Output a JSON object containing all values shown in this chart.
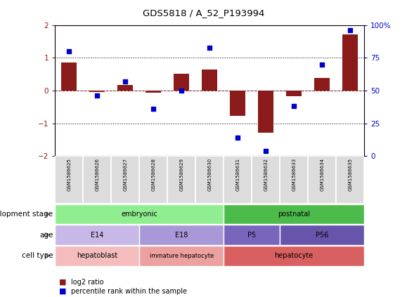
{
  "title": "GDS5818 / A_52_P193994",
  "samples": [
    "GSM1586625",
    "GSM1586626",
    "GSM1586627",
    "GSM1586628",
    "GSM1586629",
    "GSM1586630",
    "GSM1586631",
    "GSM1586632",
    "GSM1586633",
    "GSM1586634",
    "GSM1586635"
  ],
  "log2_ratio": [
    0.85,
    -0.05,
    0.18,
    -0.06,
    0.52,
    0.65,
    -0.78,
    -1.28,
    -0.18,
    0.38,
    1.72
  ],
  "percentile": [
    80,
    46,
    57,
    36,
    50,
    83,
    14,
    4,
    38,
    70,
    96
  ],
  "ylim": [
    -2,
    2
  ],
  "right_ylim": [
    0,
    100
  ],
  "bar_color": "#8B1A1A",
  "dot_color": "#0000CC",
  "development_stage_rows": [
    {
      "start": 0,
      "end": 6,
      "color": "#90EE90",
      "label": "embryonic"
    },
    {
      "start": 6,
      "end": 11,
      "color": "#4CBB4C",
      "label": "postnatal"
    }
  ],
  "age_rows": [
    {
      "start": 0,
      "end": 3,
      "color": "#C8B8E8",
      "label": "E14"
    },
    {
      "start": 3,
      "end": 6,
      "color": "#A898D8",
      "label": "E18"
    },
    {
      "start": 6,
      "end": 8,
      "color": "#7766BB",
      "label": "P5"
    },
    {
      "start": 8,
      "end": 11,
      "color": "#6655AA",
      "label": "P56"
    }
  ],
  "cell_type_rows": [
    {
      "start": 0,
      "end": 3,
      "color": "#F4BCBC",
      "label": "hepatoblast"
    },
    {
      "start": 3,
      "end": 6,
      "color": "#ECA0A0",
      "label": "immature hepatocyte"
    },
    {
      "start": 6,
      "end": 11,
      "color": "#D96060",
      "label": "hepatocyte"
    }
  ],
  "axis_color_left": "#8B1A1A",
  "axis_color_right": "#0000CC",
  "background_color": "#ffffff",
  "legend_log2_color": "#8B1A1A",
  "legend_pct_color": "#0000CC"
}
